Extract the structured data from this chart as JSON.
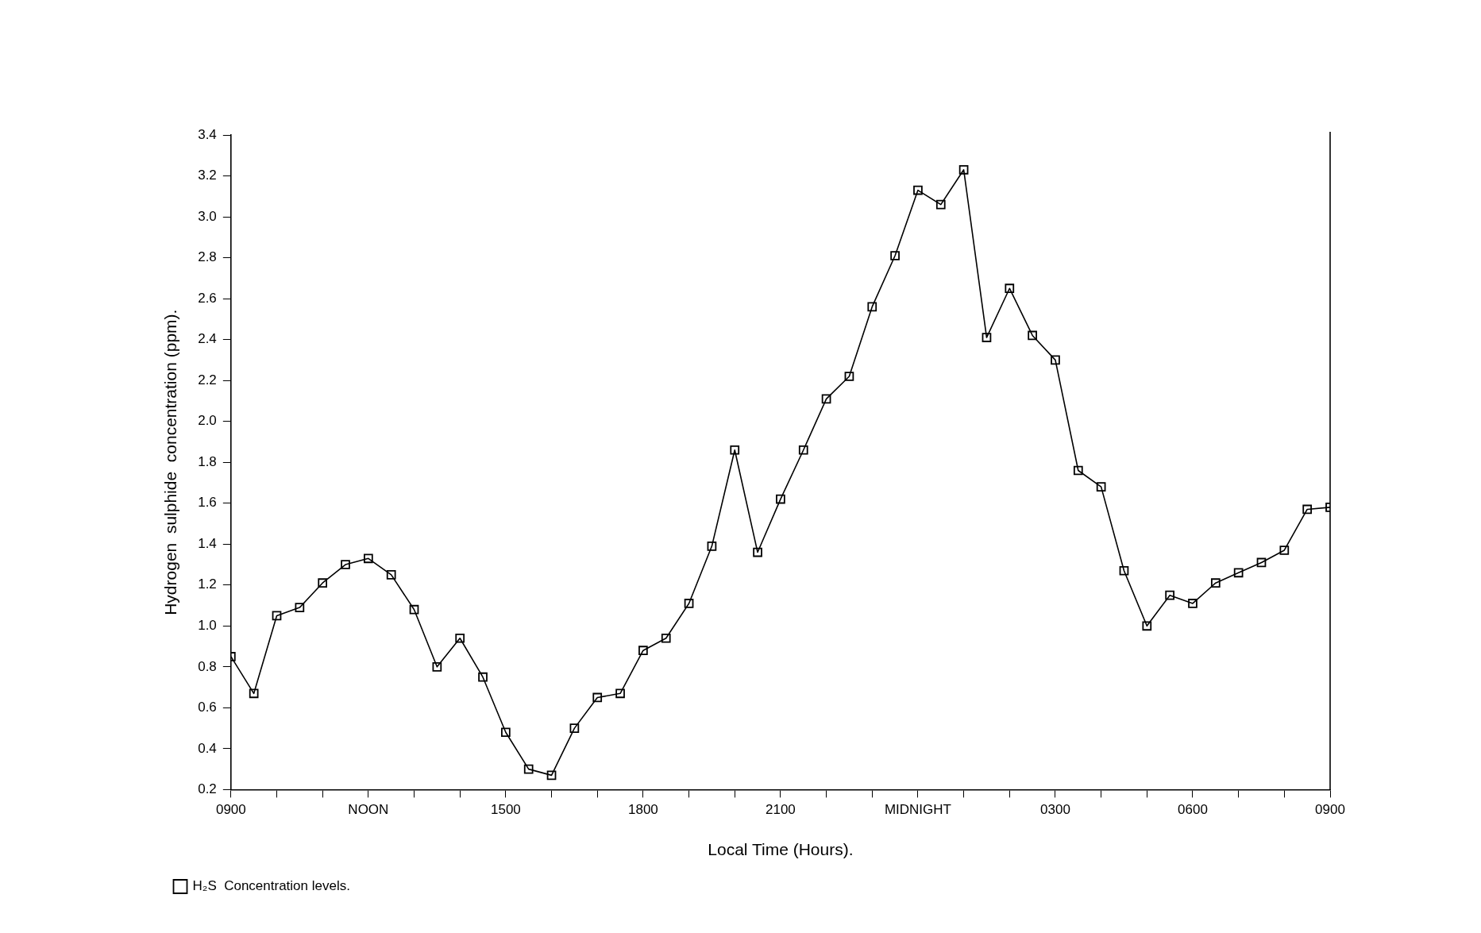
{
  "chart_data": {
    "type": "line",
    "xlabel": "Local Time (Hours).",
    "ylabel": "Hydrogen  sulphide  concentration (ppm).",
    "categories": [
      "0900",
      null,
      null,
      null,
      null,
      null,
      "NOON",
      null,
      null,
      null,
      null,
      null,
      "1500",
      null,
      null,
      null,
      null,
      null,
      "1800",
      null,
      null,
      null,
      null,
      null,
      "2100",
      null,
      null,
      null,
      null,
      null,
      "MIDNIGHT",
      null,
      null,
      null,
      null,
      null,
      "0300",
      null,
      null,
      null,
      null,
      null,
      "0600",
      null,
      null,
      null,
      null,
      null,
      "0900"
    ],
    "series": [
      {
        "name": "H₂S  Concentration levels.",
        "color": "#000000",
        "values": [
          0.85,
          0.67,
          1.05,
          1.09,
          1.21,
          1.3,
          1.33,
          1.25,
          1.08,
          0.8,
          0.94,
          0.75,
          0.48,
          0.3,
          0.27,
          0.5,
          0.65,
          0.67,
          0.88,
          0.94,
          1.11,
          1.39,
          1.86,
          1.36,
          1.62,
          1.86,
          2.11,
          2.22,
          2.56,
          2.81,
          3.13,
          3.06,
          3.23,
          2.41,
          2.65,
          2.42,
          2.3,
          1.76,
          1.68,
          1.27,
          1.0,
          1.15,
          1.11,
          1.21,
          1.26,
          1.31,
          1.37,
          1.57,
          1.58
        ]
      }
    ],
    "ylim": [
      0.2,
      3.4
    ],
    "yticks": [
      0.2,
      0.4,
      0.6,
      0.8,
      {
        "value": 1,
        "label": "1.0"
      },
      1.2,
      1.4,
      1.6,
      1.8,
      {
        "value": 2,
        "label": "2.0"
      },
      2.2,
      2.4,
      2.6,
      2.8,
      {
        "value": 3,
        "label": "3.0"
      },
      3.2,
      3.4
    ],
    "grid": false,
    "legend": "bottom left",
    "marker": "square",
    "line_style": "solid"
  }
}
